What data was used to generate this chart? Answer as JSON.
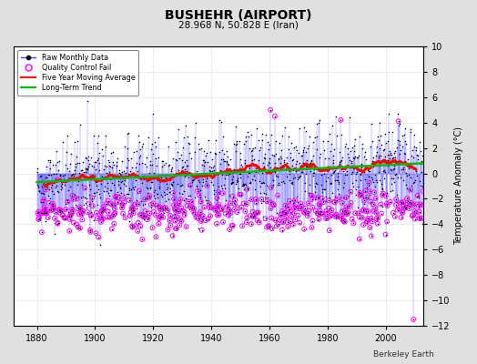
{
  "title": "BUSHEHR (AIRPORT)",
  "subtitle": "28.968 N, 50.828 E (Iran)",
  "ylabel": "Temperature Anomaly (°C)",
  "xlabel_years": [
    1880,
    1900,
    1920,
    1940,
    1960,
    1980,
    2000
  ],
  "ylim": [
    -12,
    10
  ],
  "yticks": [
    -12,
    -10,
    -8,
    -6,
    -4,
    -2,
    0,
    2,
    4,
    6,
    8,
    10
  ],
  "xlim": [
    1872,
    2013
  ],
  "watermark": "Berkeley Earth",
  "bg_color": "#e0e0e0",
  "plot_bg_color": "#ffffff",
  "line_color": "#4444ff",
  "marker_color": "#000000",
  "qc_color": "#ff00ff",
  "moving_avg_color": "#ff0000",
  "trend_color": "#00bb00",
  "seed": 42
}
